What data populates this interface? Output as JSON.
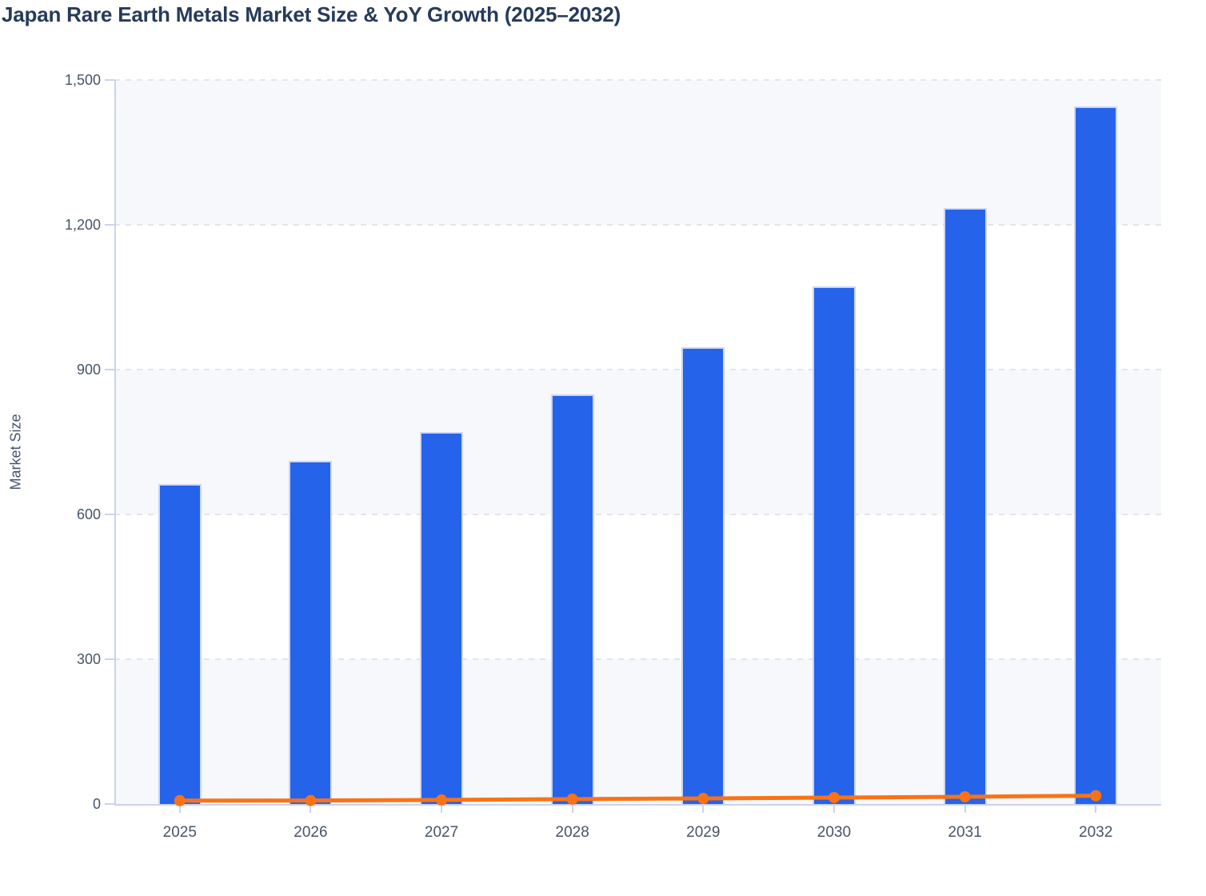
{
  "chart_data": {
    "type": "bar",
    "title": "Japan Rare Earth Metals Market Size & YoY Growth (2025–2032)",
    "xlabel": "",
    "ylabel": "Market Size",
    "categories": [
      "2025",
      "2026",
      "2027",
      "2028",
      "2029",
      "2030",
      "2031",
      "2032"
    ],
    "series": [
      {
        "name": "Market Size",
        "type": "bar",
        "color": "#2563eb",
        "values": [
          663,
          711,
          771,
          849,
          947,
          1073,
          1234,
          1446
        ]
      },
      {
        "name": "YoY Growth",
        "type": "line",
        "color": "#f97316",
        "values": [
          7.0,
          7.2,
          8.4,
          10.1,
          11.5,
          13.3,
          15.0,
          17.2
        ]
      }
    ],
    "ylim": [
      0,
      1500
    ],
    "yticks": [
      0,
      300,
      600,
      900,
      1200,
      1500
    ],
    "ytick_labels": [
      "0",
      "300",
      "600",
      "900",
      "1,200",
      "1,500"
    ],
    "grid": "horizontal-dashed",
    "plot_bands": "alternating horizontal stripes, light band at top",
    "legend": "none",
    "colors": {
      "bar": "#2563eb",
      "bar_border": "#ccd6f4",
      "line": "#f97316",
      "band": "#f7f8fb",
      "grid": "#e2e5ea",
      "axis": "#c9d3ef",
      "tick_label": "#475569",
      "title": "#263b59",
      "background": "#ffffff"
    }
  }
}
